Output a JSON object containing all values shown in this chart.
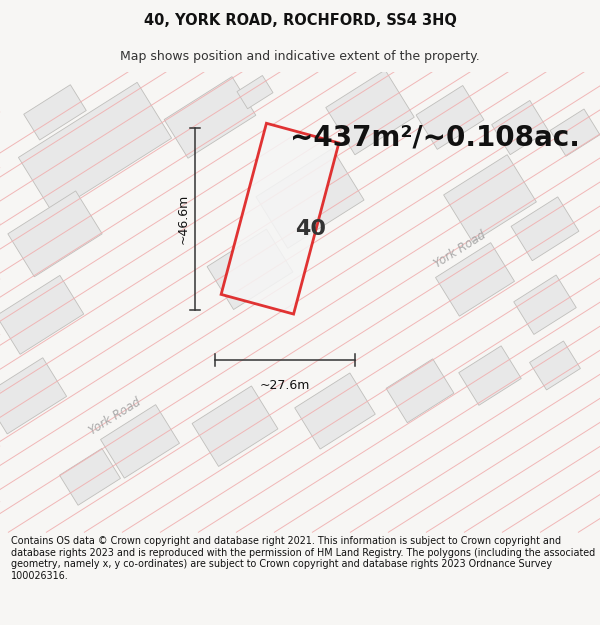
{
  "title": "40, YORK ROAD, ROCHFORD, SS4 3HQ",
  "subtitle": "Map shows position and indicative extent of the property.",
  "area_text": "~437m²/~0.108ac.",
  "property_number": "40",
  "dim_height": "~46.6m",
  "dim_width": "~27.6m",
  "road_label1": "York Road",
  "road_label2": "York Road",
  "footer": "Contains OS data © Crown copyright and database right 2021. This information is subject to Crown copyright and database rights 2023 and is reproduced with the permission of HM Land Registry. The polygons (including the associated geometry, namely x, y co-ordinates) are subject to Crown copyright and database rights 2023 Ordnance Survey 100026316.",
  "page_bg": "#f7f6f4",
  "map_bg": "#ffffff",
  "building_fill": "#e8e8e8",
  "building_edge": "#c0bfbc",
  "road_line_color": "#f0b0b0",
  "road_outline_color": "#e8a0a0",
  "plot_outline_color": "#dd1111",
  "plot_fill_color": "#f5f5f5",
  "plot_fill_alpha": 0.85,
  "title_fontsize": 10.5,
  "subtitle_fontsize": 9.0,
  "area_fontsize": 20,
  "footer_fontsize": 6.9
}
